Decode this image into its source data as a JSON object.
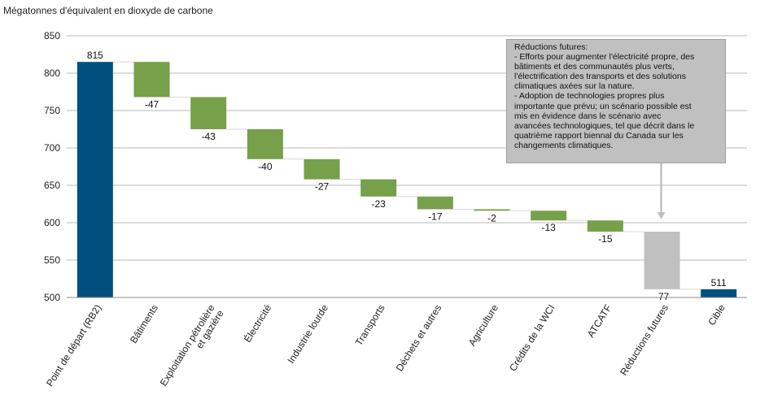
{
  "chart_data": {
    "type": "waterfall",
    "ylabel": "Mégatonnes d'équivalent en dioxyde de carbone",
    "ylim": [
      500,
      850
    ],
    "yticks": [
      500,
      550,
      600,
      650,
      700,
      750,
      800,
      850
    ],
    "grid": true,
    "categories": [
      "Point de départ (RB2)",
      "Bâtiments",
      "Exploitation pétrolière et gazière",
      "Électricité",
      "Industrie lourde",
      "Transports",
      "Déchets et autres",
      "Agriculture",
      "Crédits de la WCI",
      "ATCATF",
      "Réductions futures",
      "Cible"
    ],
    "values": [
      815,
      -47,
      -43,
      -40,
      -27,
      -23,
      -17,
      -2,
      -13,
      -15,
      -77,
      511
    ],
    "labels": [
      "815",
      "-47",
      "-43",
      "-40",
      "-27",
      "-23",
      "-17",
      "-2",
      "-13",
      "-15",
      "-77",
      "511"
    ],
    "kinds": [
      "total",
      "delta",
      "delta",
      "delta",
      "delta",
      "delta",
      "delta",
      "delta",
      "delta",
      "delta",
      "future",
      "total"
    ],
    "colors": {
      "total": "#004f7f",
      "delta": "#77a04a",
      "future": "#c0c0c0",
      "grid": "#b8b8b8"
    },
    "annotation": {
      "lines": [
        "Réductions futures:",
        "- Efforts pour augmenter l'électricité propre, des",
        "bâtiments et des communautés plus verts,",
        "l'électrification des transports et des solutions",
        "climatiques axées sur la nature.",
        "- Adoption de technologies propres plus",
        "importante que prévu; un scénario possible est",
        "mis en évidence dans le scénario avec",
        "avancées technologiques, tel que décrit dans le",
        "quatrième rapport biennal du Canada sur les",
        "changements climatiques."
      ]
    }
  }
}
